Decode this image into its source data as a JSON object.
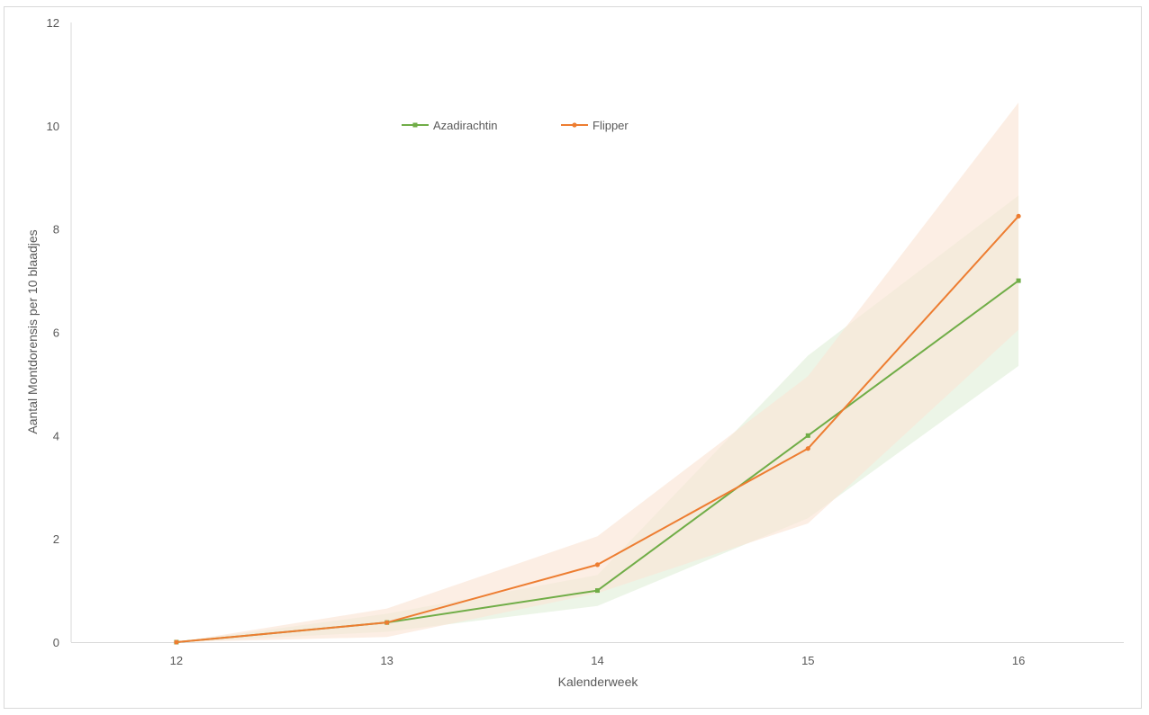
{
  "chart_data": {
    "type": "line",
    "title": "",
    "xlabel": "Kalenderweek",
    "ylabel": "Aantal Montdorensis per 10 blaadjes",
    "x": [
      12,
      13,
      14,
      15,
      16
    ],
    "xlim": [
      11.5,
      16.5
    ],
    "ylim": [
      0,
      12
    ],
    "y_ticks": [
      0,
      2,
      4,
      6,
      8,
      10,
      12
    ],
    "grid": false,
    "legend_position": "top-center",
    "series": [
      {
        "name": "Azadirachtin",
        "color": "#70ad47",
        "marker": "square",
        "values": [
          0,
          0.38,
          1.0,
          4.0,
          7.0
        ],
        "band_lower": [
          0,
          0.2,
          0.7,
          2.4,
          5.35
        ],
        "band_upper": [
          0,
          0.55,
          1.3,
          5.55,
          8.65
        ],
        "band_color": "#e2efda"
      },
      {
        "name": "Flipper",
        "color": "#ed7d31",
        "marker": "circle",
        "values": [
          0,
          0.38,
          1.5,
          3.75,
          8.25
        ],
        "band_lower": [
          0,
          0.1,
          0.95,
          2.3,
          6.05
        ],
        "band_upper": [
          0,
          0.65,
          2.05,
          5.15,
          10.45
        ],
        "band_color": "#fbe5d6"
      }
    ]
  }
}
